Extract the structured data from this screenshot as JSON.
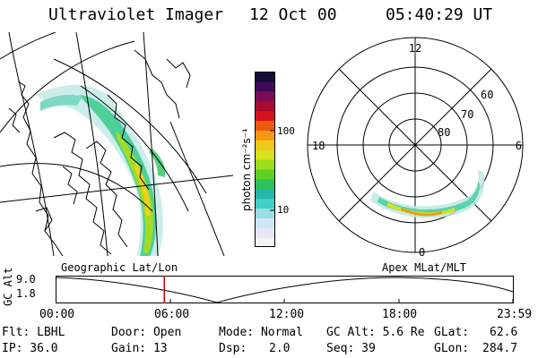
{
  "header": {
    "instrument": "Ultraviolet Imager",
    "date": "12 Oct 00",
    "time": "05:40:29 UT"
  },
  "colorbar": {
    "label": "photon cm⁻²s⁻¹",
    "ticks": [
      "100",
      "10"
    ],
    "colors": [
      "#f4f4f4",
      "#e6e6f8",
      "#cfe8f4",
      "#9adfe6",
      "#42cfc4",
      "#24b8a6",
      "#2fbf5c",
      "#60cf24",
      "#9edc1e",
      "#d6e21e",
      "#f0c81c",
      "#f49a12",
      "#ee5a10",
      "#d4141c",
      "#a80c30",
      "#7c0c58",
      "#3c0c58",
      "#140c3c"
    ]
  },
  "left_map": {
    "label": "Geographic Lat/Lon"
  },
  "right_map": {
    "label": "Apex MLat/MLT",
    "mlt_labels": [
      "12",
      "18",
      "6",
      "0"
    ],
    "lat_labels": [
      "60",
      "70",
      "80"
    ]
  },
  "altitude_plot": {
    "ylabel": "GC Alt",
    "yticks": [
      "9.0",
      "1.8"
    ],
    "xticks": [
      "00:00",
      "06:00",
      "12:00",
      "18:00",
      "23:59"
    ],
    "marker_time_hours": 5.67,
    "marker_color": "#cc0000"
  },
  "info": {
    "flt": "Flt: LBHL",
    "ip": "IP: 36.0",
    "door": "Door: Open",
    "gain": "Gain: 13",
    "mode": "Mode: Normal",
    "dsp_label": "Dsp:",
    "dsp_value": "2.0",
    "gcalt": "GC Alt: 5.6 Re",
    "seq": "Seq: 39",
    "glat_label": "GLat:",
    "glat_value": "62.6",
    "glon_label": "GLon:",
    "glon_value": "284.7"
  }
}
